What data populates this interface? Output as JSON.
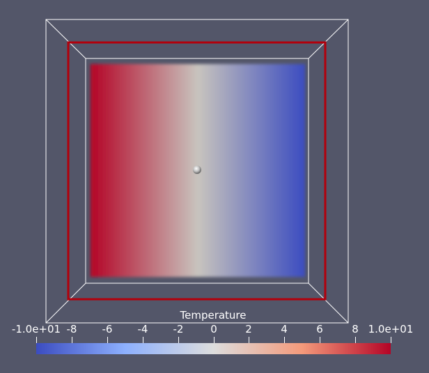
{
  "colors": {
    "background": "#535669",
    "outline": "#ffffff",
    "selection_outline": "#b2000c",
    "probe_sphere": "#cfcfcf"
  },
  "colormap": {
    "name": "Cool to Warm",
    "stops": [
      "#3b4cc0",
      "#8db0fe",
      "#dddddd",
      "#f49a7b",
      "#b40426"
    ]
  },
  "slice_colormap": {
    "stops": [
      "#b40426",
      "#dddddd",
      "#3b4cc0"
    ]
  },
  "colorbar": {
    "title": "Temperature",
    "min": -10,
    "max": 10,
    "ticks": [
      {
        "value": -10,
        "label": "-1.0e+01"
      },
      {
        "value": -8,
        "label": "-8"
      },
      {
        "value": -6,
        "label": "-6"
      },
      {
        "value": -4,
        "label": "-4"
      },
      {
        "value": -2,
        "label": "-2"
      },
      {
        "value": 0,
        "label": "0"
      },
      {
        "value": 2,
        "label": "2"
      },
      {
        "value": 4,
        "label": "4"
      },
      {
        "value": 6,
        "label": "6"
      },
      {
        "value": 8,
        "label": "8"
      },
      {
        "value": 10,
        "label": "1.0e+01"
      }
    ]
  }
}
